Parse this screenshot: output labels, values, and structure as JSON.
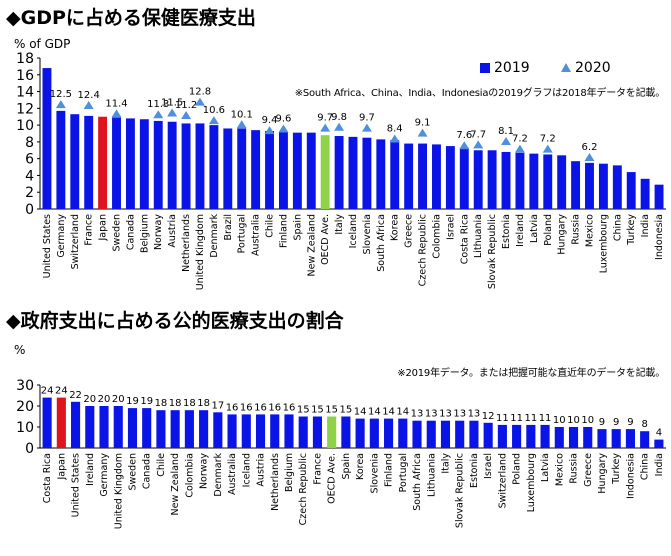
{
  "chart_data": [
    {
      "type": "bar",
      "title": "◆GDPに占める保健医療支出",
      "ylabel": "% of GDP",
      "ylim": [
        0,
        18
      ],
      "yticks": [
        0,
        2,
        4,
        6,
        8,
        10,
        12,
        14,
        16,
        18
      ],
      "grid": false,
      "note": "※South Africa、China、India、Indonesiaの2019グラフは2018年データを記載。",
      "legend_position": "top-right",
      "colors": {
        "bar": "#0a14e6",
        "japan": "#e0141e",
        "oecd": "#8ed24a",
        "marker": "#4f8fe0"
      },
      "categories": [
        "United States",
        "Germany",
        "Switzerland",
        "France",
        "Japan",
        "Sweden",
        "Canada",
        "Belgium",
        "Norway",
        "Austria",
        "Netherlands",
        "United Kingdom",
        "Denmark",
        "Brazil",
        "Portugal",
        "Australia",
        "Chile",
        "Finland",
        "Spain",
        "New Zealand",
        "OECD Ave.",
        "Italy",
        "Iceland",
        "Slovenia",
        "South Africa",
        "Korea",
        "Greece",
        "Czech Republic",
        "Colombia",
        "Israel",
        "Costa Rica",
        "Lithuania",
        "Slovak Republic",
        "Estonia",
        "Ireland",
        "Latvia",
        "Poland",
        "Hungary",
        "Russia",
        "Mexico",
        "Luxembourg",
        "China",
        "Turkey",
        "India",
        "Indonesia"
      ],
      "series": [
        {
          "name": "2019",
          "values": [
            16.8,
            11.7,
            11.3,
            11.1,
            11.0,
            10.9,
            10.8,
            10.7,
            10.5,
            10.4,
            10.2,
            10.2,
            10.0,
            9.6,
            9.6,
            9.4,
            9.3,
            9.2,
            9.1,
            9.1,
            8.8,
            8.7,
            8.6,
            8.5,
            8.3,
            8.2,
            7.8,
            7.8,
            7.7,
            7.5,
            7.3,
            7.0,
            7.0,
            6.8,
            6.7,
            6.6,
            6.5,
            6.4,
            5.7,
            5.5,
            5.4,
            5.2,
            4.4,
            3.6,
            2.9
          ]
        },
        {
          "name": "2020",
          "values": [
            null,
            12.5,
            null,
            12.4,
            null,
            11.4,
            null,
            null,
            11.3,
            11.5,
            11.2,
            12.8,
            10.6,
            null,
            10.1,
            null,
            9.4,
            9.6,
            null,
            null,
            9.7,
            9.8,
            null,
            9.7,
            null,
            8.4,
            null,
            9.1,
            null,
            null,
            7.6,
            7.7,
            null,
            8.1,
            7.2,
            null,
            7.2,
            null,
            null,
            6.2,
            null,
            null,
            null,
            null,
            null
          ]
        }
      ],
      "data_labels": [
        {
          "index": 1,
          "text": "12.5"
        },
        {
          "index": 3,
          "text": "12.4"
        },
        {
          "index": 5,
          "text": "11.4"
        },
        {
          "index": 8,
          "text": "11.3"
        },
        {
          "index": 9,
          "text": "11.5"
        },
        {
          "index": 10,
          "text": "11.2"
        },
        {
          "index": 11,
          "text": "12.8"
        },
        {
          "index": 12,
          "text": "10.6"
        },
        {
          "index": 14,
          "text": "10.1"
        },
        {
          "index": 16,
          "text": "9.4"
        },
        {
          "index": 17,
          "text": "9.6"
        },
        {
          "index": 20,
          "text": "9.7"
        },
        {
          "index": 21,
          "text": "9.8"
        },
        {
          "index": 23,
          "text": "9.7"
        },
        {
          "index": 25,
          "text": "8.4"
        },
        {
          "index": 27,
          "text": "9.1"
        },
        {
          "index": 30,
          "text": "7.6"
        },
        {
          "index": 31,
          "text": "7.7"
        },
        {
          "index": 33,
          "text": "8.1"
        },
        {
          "index": 34,
          "text": "7.2"
        },
        {
          "index": 36,
          "text": "7.2"
        },
        {
          "index": 39,
          "text": "6.2"
        }
      ]
    },
    {
      "type": "bar",
      "title": "◆政府支出に占める公的医療支出の割合",
      "ylabel": "%",
      "ylim": [
        0,
        30
      ],
      "yticks": [
        0,
        10,
        20,
        30
      ],
      "grid": false,
      "note": "※2019年データ。または把握可能な直近年のデータを記載。",
      "colors": {
        "bar": "#0a14e6",
        "japan": "#e0141e",
        "oecd": "#8ed24a"
      },
      "categories": [
        "Costa Rica",
        "Japan",
        "United States",
        "Ireland",
        "Germany",
        "United Kingdom",
        "Sweden",
        "Canada",
        "Chile",
        "New Zealand",
        "Colombia",
        "Norway",
        "Denmark",
        "Australia",
        "Iceland",
        "Austria",
        "Netherlands",
        "Belgium",
        "Czech Republic",
        "France",
        "OECD Ave.",
        "Spain",
        "Korea",
        "Slovenia",
        "Finland",
        "Portugal",
        "South Africa",
        "Lithuania",
        "Italy",
        "Slovak Republic",
        "Estonia",
        "Israel",
        "Switzerland",
        "Poland",
        "Luxembourg",
        "Latvia",
        "Mexico",
        "Russia",
        "Greece",
        "Hungary",
        "Turkey",
        "Indonesia",
        "China",
        "India"
      ],
      "values": [
        24,
        24,
        22,
        20,
        20,
        20,
        19,
        19,
        18,
        18,
        18,
        18,
        17,
        16,
        16,
        16,
        16,
        16,
        15,
        15,
        15,
        15,
        14,
        14,
        14,
        14,
        13,
        13,
        13,
        13,
        13,
        12,
        11,
        11,
        11,
        11,
        10,
        10,
        10,
        9,
        9,
        9,
        8,
        4
      ],
      "labels": [
        "24",
        "24",
        "22",
        "20",
        "20",
        "20",
        "19",
        "19",
        "18",
        "18",
        "18",
        "18",
        "17",
        "16",
        "16",
        "16",
        "16",
        "16",
        "15",
        "15",
        "15",
        "15",
        "14",
        "14",
        "14",
        "14",
        "13",
        "13",
        "13",
        "13",
        "13",
        "12",
        "11",
        "11",
        "11",
        "11",
        "10",
        "10",
        "10",
        "9",
        "9",
        "9",
        "8",
        "4"
      ]
    }
  ]
}
